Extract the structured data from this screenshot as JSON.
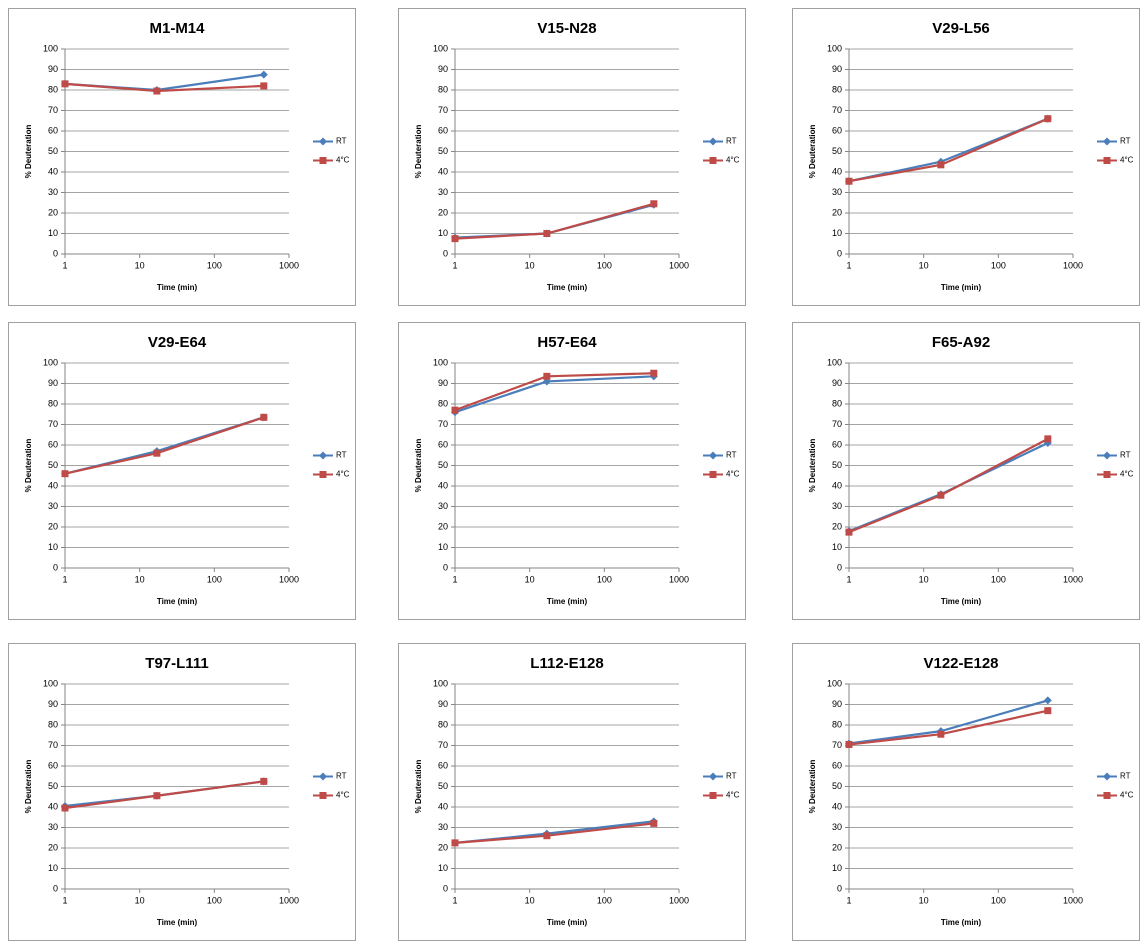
{
  "chart_data": [
    {
      "type": "line",
      "title": "M1-M14",
      "xlabel": "Time (min)",
      "ylabel": "% Deuteration",
      "x": [
        1,
        17,
        460
      ],
      "xscale": "log",
      "xlim": [
        1,
        1000
      ],
      "xticks": [
        1,
        10,
        100,
        1000
      ],
      "ylim": [
        0,
        100
      ],
      "yticks": [
        0,
        10,
        20,
        30,
        40,
        50,
        60,
        70,
        80,
        90,
        100
      ],
      "grid": true,
      "legend": "right",
      "series": [
        {
          "name": "RT",
          "color": "#4a7ebb",
          "marker": "diamond",
          "values": [
            83,
            80,
            87.5
          ]
        },
        {
          "name": "4°C",
          "color": "#be4b48",
          "marker": "square",
          "values": [
            83,
            79.5,
            82
          ]
        }
      ]
    },
    {
      "type": "line",
      "title": "V15-N28",
      "xlabel": "Time (min)",
      "ylabel": "% Deuteration",
      "x": [
        1,
        17,
        460
      ],
      "xscale": "log",
      "xlim": [
        1,
        1000
      ],
      "xticks": [
        1,
        10,
        100,
        1000
      ],
      "ylim": [
        0,
        100
      ],
      "yticks": [
        0,
        10,
        20,
        30,
        40,
        50,
        60,
        70,
        80,
        90,
        100
      ],
      "grid": true,
      "legend": "right",
      "series": [
        {
          "name": "RT",
          "color": "#4a7ebb",
          "marker": "diamond",
          "values": [
            8,
            10,
            24
          ]
        },
        {
          "name": "4°C",
          "color": "#be4b48",
          "marker": "square",
          "values": [
            7.5,
            10,
            24.5
          ]
        }
      ]
    },
    {
      "type": "line",
      "title": "V29-L56",
      "xlabel": "Time (min)",
      "ylabel": "% Deuteration",
      "x": [
        1,
        17,
        460
      ],
      "xscale": "log",
      "xlim": [
        1,
        1000
      ],
      "xticks": [
        1,
        10,
        100,
        1000
      ],
      "ylim": [
        0,
        100
      ],
      "yticks": [
        0,
        10,
        20,
        30,
        40,
        50,
        60,
        70,
        80,
        90,
        100
      ],
      "grid": true,
      "legend": "right",
      "series": [
        {
          "name": "RT",
          "color": "#4a7ebb",
          "marker": "diamond",
          "values": [
            35.5,
            45,
            66
          ]
        },
        {
          "name": "4°C",
          "color": "#be4b48",
          "marker": "square",
          "values": [
            35.5,
            43.5,
            66
          ]
        }
      ]
    },
    {
      "type": "line",
      "title": "V29-E64",
      "xlabel": "Time (min)",
      "ylabel": "% Deuteration",
      "x": [
        1,
        17,
        460
      ],
      "xscale": "log",
      "xlim": [
        1,
        1000
      ],
      "xticks": [
        1,
        10,
        100,
        1000
      ],
      "ylim": [
        0,
        100
      ],
      "yticks": [
        0,
        10,
        20,
        30,
        40,
        50,
        60,
        70,
        80,
        90,
        100
      ],
      "grid": true,
      "legend": "right",
      "series": [
        {
          "name": "RT",
          "color": "#4a7ebb",
          "marker": "diamond",
          "values": [
            46,
            57,
            73.5
          ]
        },
        {
          "name": "4°C",
          "color": "#be4b48",
          "marker": "square",
          "values": [
            46,
            56,
            73.5
          ]
        }
      ]
    },
    {
      "type": "line",
      "title": "H57-E64",
      "xlabel": "Time (min)",
      "ylabel": "% Deuteration",
      "x": [
        1,
        17,
        460
      ],
      "xscale": "log",
      "xlim": [
        1,
        1000
      ],
      "xticks": [
        1,
        10,
        100,
        1000
      ],
      "ylim": [
        0,
        100
      ],
      "yticks": [
        0,
        10,
        20,
        30,
        40,
        50,
        60,
        70,
        80,
        90,
        100
      ],
      "grid": true,
      "legend": "right",
      "series": [
        {
          "name": "RT",
          "color": "#4a7ebb",
          "marker": "diamond",
          "values": [
            76,
            91,
            93.5
          ]
        },
        {
          "name": "4°C",
          "color": "#be4b48",
          "marker": "square",
          "values": [
            77,
            93.5,
            95
          ]
        }
      ]
    },
    {
      "type": "line",
      "title": "F65-A92",
      "xlabel": "Time (min)",
      "ylabel": "% Deuteration",
      "x": [
        1,
        17,
        460
      ],
      "xscale": "log",
      "xlim": [
        1,
        1000
      ],
      "xticks": [
        1,
        10,
        100,
        1000
      ],
      "ylim": [
        0,
        100
      ],
      "yticks": [
        0,
        10,
        20,
        30,
        40,
        50,
        60,
        70,
        80,
        90,
        100
      ],
      "grid": true,
      "legend": "right",
      "series": [
        {
          "name": "RT",
          "color": "#4a7ebb",
          "marker": "diamond",
          "values": [
            18,
            36,
            61
          ]
        },
        {
          "name": "4°C",
          "color": "#be4b48",
          "marker": "square",
          "values": [
            17.5,
            35.5,
            63
          ]
        }
      ]
    },
    {
      "type": "line",
      "title": "T97-L111",
      "xlabel": "Time (min)",
      "ylabel": "% Deuteration",
      "x": [
        1,
        17,
        460
      ],
      "xscale": "log",
      "xlim": [
        1,
        1000
      ],
      "xticks": [
        1,
        10,
        100,
        1000
      ],
      "ylim": [
        0,
        100
      ],
      "yticks": [
        0,
        10,
        20,
        30,
        40,
        50,
        60,
        70,
        80,
        90,
        100
      ],
      "grid": true,
      "legend": "right",
      "series": [
        {
          "name": "RT",
          "color": "#4a7ebb",
          "marker": "diamond",
          "values": [
            40.5,
            45.5,
            52.5
          ]
        },
        {
          "name": "4°C",
          "color": "#be4b48",
          "marker": "square",
          "values": [
            39.5,
            45.5,
            52.5
          ]
        }
      ]
    },
    {
      "type": "line",
      "title": "L112-E128",
      "xlabel": "Time (min)",
      "ylabel": "% Deuteration",
      "x": [
        1,
        17,
        460
      ],
      "xscale": "log",
      "xlim": [
        1,
        1000
      ],
      "xticks": [
        1,
        10,
        100,
        1000
      ],
      "ylim": [
        0,
        100
      ],
      "yticks": [
        0,
        10,
        20,
        30,
        40,
        50,
        60,
        70,
        80,
        90,
        100
      ],
      "grid": true,
      "legend": "right",
      "series": [
        {
          "name": "RT",
          "color": "#4a7ebb",
          "marker": "diamond",
          "values": [
            22.5,
            27,
            33
          ]
        },
        {
          "name": "4°C",
          "color": "#be4b48",
          "marker": "square",
          "values": [
            22.5,
            26,
            32
          ]
        }
      ]
    },
    {
      "type": "line",
      "title": "V122-E128",
      "xlabel": "Time (min)",
      "ylabel": "% Deuteration",
      "x": [
        1,
        17,
        460
      ],
      "xscale": "log",
      "xlim": [
        1,
        1000
      ],
      "xticks": [
        1,
        10,
        100,
        1000
      ],
      "ylim": [
        0,
        100
      ],
      "yticks": [
        0,
        10,
        20,
        30,
        40,
        50,
        60,
        70,
        80,
        90,
        100
      ],
      "grid": true,
      "legend": "right",
      "series": [
        {
          "name": "RT",
          "color": "#4a7ebb",
          "marker": "diamond",
          "values": [
            71,
            77,
            92
          ]
        },
        {
          "name": "4°C",
          "color": "#be4b48",
          "marker": "square",
          "values": [
            70.5,
            75.5,
            87
          ]
        }
      ]
    }
  ]
}
